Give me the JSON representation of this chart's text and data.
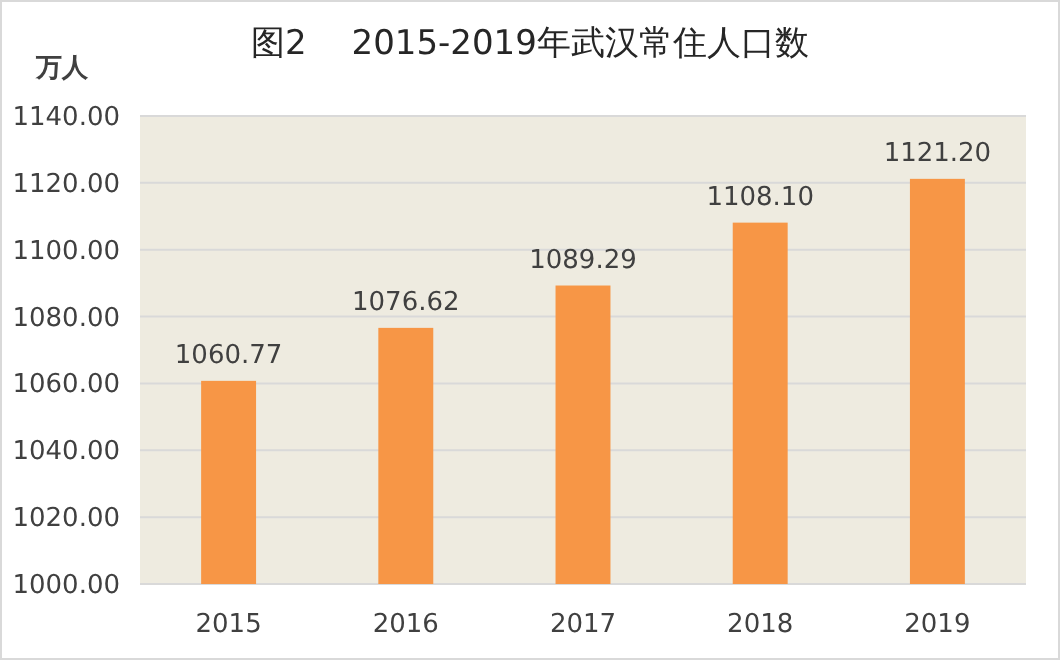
{
  "chart_data": {
    "type": "bar",
    "title": "图2　 2015-2019年武汉常住人口数",
    "ylabel": "万人",
    "categories": [
      "2015",
      "2016",
      "2017",
      "2018",
      "2019"
    ],
    "values": [
      1060.77,
      1076.62,
      1089.29,
      1108.1,
      1121.2
    ],
    "value_labels": [
      "1060.77",
      "1076.62",
      "1089.29",
      "1108.10",
      "1121.20"
    ],
    "color": "#f79646",
    "ylim": [
      1000,
      1140
    ],
    "yticks": [
      {
        "value": 1000,
        "label": "1000.00"
      },
      {
        "value": 1020,
        "label": "1020.00"
      },
      {
        "value": 1040,
        "label": "1040.00"
      },
      {
        "value": 1060,
        "label": "1060.00"
      },
      {
        "value": 1080,
        "label": "1080.00"
      },
      {
        "value": 1100,
        "label": "1100.00"
      },
      {
        "value": 1120,
        "label": "1120.00"
      },
      {
        "value": 1140,
        "label": "1140.00"
      }
    ],
    "grid": "y"
  }
}
